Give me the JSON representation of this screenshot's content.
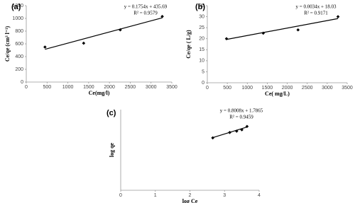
{
  "chart_data": [
    {
      "type": "scatter",
      "label": "(a)",
      "xlabel": "Ce(mg/l)",
      "ylabel": "Ce/qe (cm³ l⁻¹)",
      "x": [
        450,
        1380,
        2260,
        3270
      ],
      "values": [
        550,
        610,
        820,
        1030
      ],
      "color": "#000000",
      "xlim": [
        0,
        3500
      ],
      "xticks": [
        0,
        500,
        1000,
        1500,
        2000,
        2500,
        3000,
        3500
      ],
      "ylim": [
        0,
        1200
      ],
      "yticks": [
        0,
        200,
        400,
        600,
        800,
        1000,
        1200
      ],
      "trendline": {
        "equation": "y = 0.1754x + 435.69",
        "r2": "R² = 0.9579",
        "slope": 0.1754,
        "intercept": 435.69
      }
    },
    {
      "type": "scatter",
      "label": "(b)",
      "xlabel": "Ce( mg/L)",
      "ylabel": "Ce/qe ( L/g)",
      "x": [
        480,
        1400,
        2270,
        3270
      ],
      "values": [
        20,
        22.5,
        24,
        30
      ],
      "color": "#000000",
      "xlim": [
        0,
        3500
      ],
      "xticks": [
        0,
        500,
        1000,
        1500,
        2000,
        2500,
        3000,
        3500
      ],
      "ylim": [
        0,
        35
      ],
      "yticks": [
        0,
        5,
        10,
        15,
        20,
        25,
        30,
        35
      ],
      "trendline": {
        "equation": "y = 0.0034x + 18.03",
        "r2": "R² = 0.9171",
        "slope": 0.0034,
        "intercept": 18.03
      }
    },
    {
      "type": "scatter",
      "label": "(c)",
      "xlabel": "log Ce",
      "ylabel": "log qe",
      "x": [
        2.66,
        3.15,
        3.35,
        3.5,
        3.65
      ],
      "values": [
        3.9,
        4.3,
        4.4,
        4.5,
        4.75
      ],
      "color": "#000000",
      "xlim": [
        0,
        4
      ],
      "xticks": [
        0,
        1,
        2,
        3,
        4
      ],
      "ylim": [
        0,
        6
      ],
      "trendline": {
        "equation": "y = 0.8008x + 1.7865",
        "r2": "R² = 0.9459",
        "slope": 0.8008,
        "intercept": 1.7865
      }
    }
  ]
}
